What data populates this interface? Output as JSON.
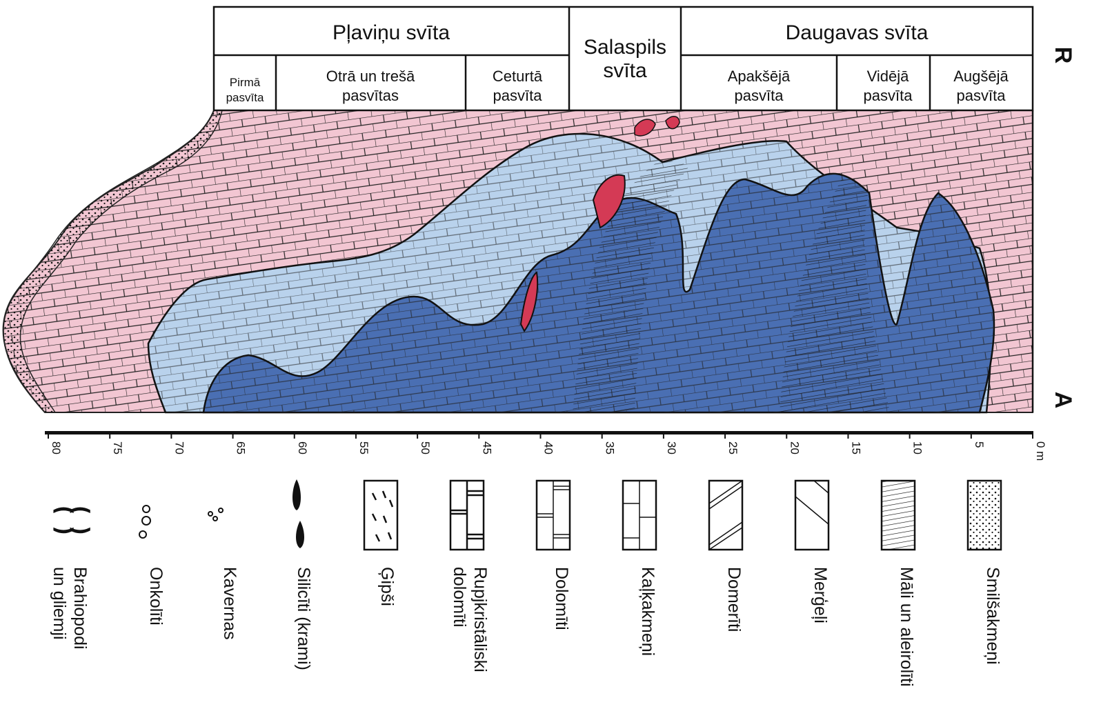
{
  "header": {
    "formations": [
      [
        "Pļaviņu svīta"
      ],
      [
        "Salaspils",
        "svīta"
      ],
      [
        "Daugavas svīta"
      ]
    ],
    "subformations": [
      [
        "Pirmā",
        "pasvīta"
      ],
      [
        "Otrā un trešā",
        "pasvītas"
      ],
      [
        "Ceturtā",
        "pasvīta"
      ],
      [
        "Apakšējā",
        "pasvīta"
      ],
      [
        "Vidējā",
        "pasvīta"
      ],
      [
        "Augšējā",
        "pasvīta"
      ]
    ]
  },
  "side_labels": [
    "R",
    "A"
  ],
  "scale": {
    "ticks": [
      80,
      75,
      70,
      65,
      60,
      55,
      50,
      45,
      40,
      35,
      30,
      25,
      20,
      15,
      10,
      5,
      {
        "value": 0,
        "label": "0 m"
      }
    ]
  },
  "legend": [
    [
      "Brahiopodi",
      "un gliemji"
    ],
    [
      "Onkolīti"
    ],
    [
      "Kavernas"
    ],
    [
      "Silicīti (krami)"
    ],
    [
      "Ģipši"
    ],
    [
      "Rupjkristāliski",
      "dolomīti"
    ],
    [
      "Dolomīti"
    ],
    [
      "Kaļķakmeņi"
    ],
    [
      "Domerīti"
    ],
    [
      "Merģeļi"
    ],
    [
      "Māli un aleirolīti"
    ],
    [
      "Smilšakmeņi"
    ]
  ]
}
